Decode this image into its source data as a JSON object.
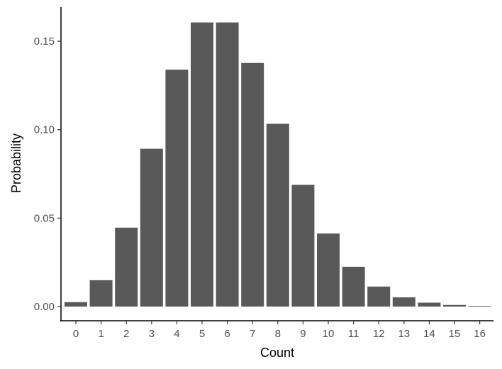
{
  "chart_data": {
    "type": "bar",
    "title": "",
    "xlabel": "Count",
    "ylabel": "Probability",
    "categories": [
      "0",
      "1",
      "2",
      "3",
      "4",
      "5",
      "6",
      "7",
      "8",
      "9",
      "10",
      "11",
      "12",
      "13",
      "14",
      "15",
      "16"
    ],
    "values": [
      0.0025,
      0.0149,
      0.0446,
      0.0892,
      0.1339,
      0.1606,
      0.1606,
      0.1377,
      0.1033,
      0.0688,
      0.0413,
      0.0225,
      0.0113,
      0.0052,
      0.0022,
      0.0009,
      0.0003
    ],
    "yticks": [
      "0.00",
      "0.05",
      "0.10",
      "0.15"
    ],
    "ytick_values": [
      0,
      0.05,
      0.1,
      0.15
    ],
    "ylim": [
      -0.008,
      0.17
    ],
    "grid": false,
    "legend": null,
    "bar_color": "#595959"
  }
}
